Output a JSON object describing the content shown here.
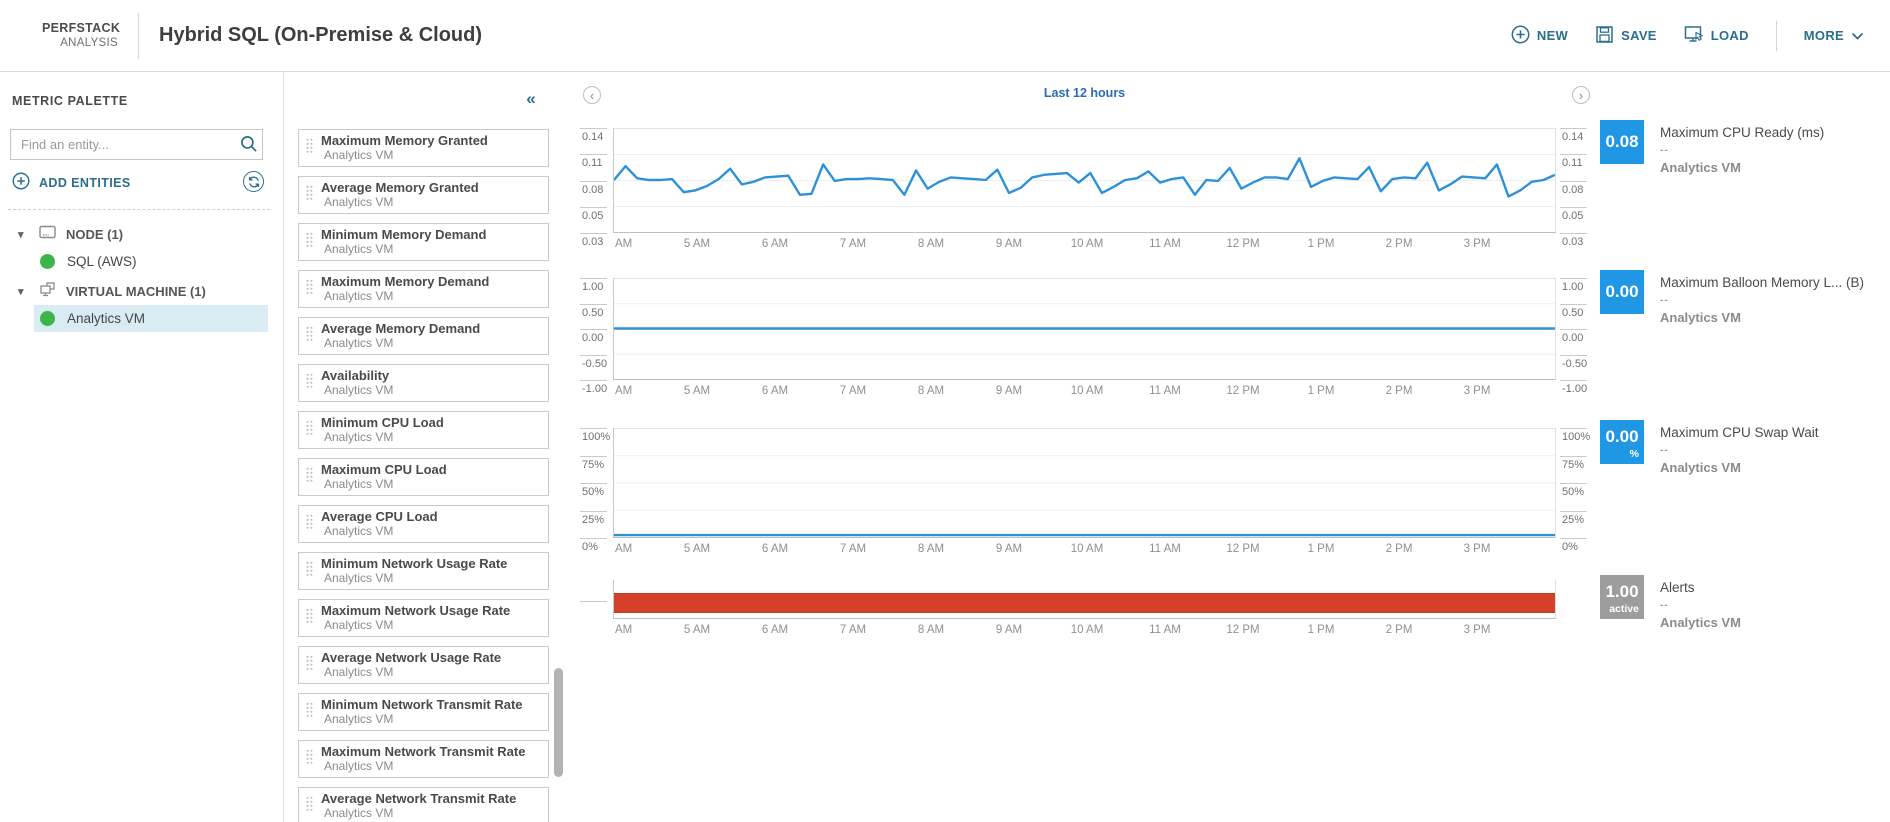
{
  "header": {
    "brand_top": "PERFSTACK",
    "brand_bottom": "ANALYSIS",
    "title": "Hybrid SQL (On-Premise & Cloud)",
    "actions": {
      "new": "NEW",
      "save": "SAVE",
      "load": "LOAD",
      "more": "MORE"
    }
  },
  "icons": {
    "collapse": "«",
    "caret": "▾",
    "prev": "‹",
    "next": "›"
  },
  "palette": {
    "title": "METRIC PALETTE",
    "search_placeholder": "Find an entity...",
    "add_entities": "ADD ENTITIES",
    "tree": [
      {
        "kind": "group",
        "icon": "node",
        "label": "NODE (1)"
      },
      {
        "kind": "entity",
        "status": "up",
        "label": "SQL (AWS)",
        "selected": false
      },
      {
        "kind": "group",
        "icon": "vm",
        "label": "VIRTUAL MACHINE (1)"
      },
      {
        "kind": "entity",
        "status": "up",
        "label": "Analytics VM",
        "selected": true
      }
    ],
    "metrics": [
      {
        "label": "Maximum Memory Granted",
        "entity": "Analytics VM"
      },
      {
        "label": "Average Memory Granted",
        "entity": "Analytics VM"
      },
      {
        "label": "Minimum Memory Demand",
        "entity": "Analytics VM"
      },
      {
        "label": "Maximum Memory Demand",
        "entity": "Analytics VM"
      },
      {
        "label": "Average Memory Demand",
        "entity": "Analytics VM"
      },
      {
        "label": "Availability",
        "entity": "Analytics VM"
      },
      {
        "label": "Minimum CPU Load",
        "entity": "Analytics VM"
      },
      {
        "label": "Maximum CPU Load",
        "entity": "Analytics VM"
      },
      {
        "label": "Average CPU Load",
        "entity": "Analytics VM"
      },
      {
        "label": "Minimum Network Usage Rate",
        "entity": "Analytics VM"
      },
      {
        "label": "Maximum Network Usage Rate",
        "entity": "Analytics VM"
      },
      {
        "label": "Average Network Usage Rate",
        "entity": "Analytics VM"
      },
      {
        "label": "Minimum Network Transmit Rate",
        "entity": "Analytics VM"
      },
      {
        "label": "Maximum Network Transmit Rate",
        "entity": "Analytics VM"
      },
      {
        "label": "Average Network Transmit Rate",
        "entity": "Analytics VM"
      }
    ]
  },
  "charts": {
    "time_range": "Last 12 hours"
  },
  "chart_data": [
    {
      "type": "line",
      "title": "Maximum CPU Ready (ms)",
      "entity": "Analytics VM",
      "line_color": "#2d91d8",
      "ylim": [
        0.03,
        0.14
      ],
      "y_ticks": [
        "0.14",
        "0.11",
        "0.08",
        "0.05",
        "0.03"
      ],
      "x_labels": [
        "AM",
        "5 AM",
        "6 AM",
        "7 AM",
        "8 AM",
        "9 AM",
        "10 AM",
        "11 AM",
        "12 PM",
        "1 PM",
        "2 PM",
        "3 PM"
      ],
      "values": [
        0.08,
        0.096,
        0.082,
        0.08,
        0.08,
        0.081,
        0.066,
        0.068,
        0.073,
        0.081,
        0.093,
        0.075,
        0.078,
        0.083,
        0.084,
        0.085,
        0.063,
        0.064,
        0.098,
        0.079,
        0.081,
        0.081,
        0.082,
        0.081,
        0.08,
        0.063,
        0.091,
        0.07,
        0.078,
        0.083,
        0.082,
        0.081,
        0.08,
        0.092,
        0.065,
        0.071,
        0.083,
        0.086,
        0.087,
        0.088,
        0.077,
        0.088,
        0.065,
        0.072,
        0.08,
        0.082,
        0.09,
        0.077,
        0.081,
        0.083,
        0.063,
        0.08,
        0.079,
        0.094,
        0.07,
        0.077,
        0.083,
        0.083,
        0.081,
        0.105,
        0.072,
        0.079,
        0.083,
        0.082,
        0.081,
        0.095,
        0.067,
        0.081,
        0.083,
        0.082,
        0.1,
        0.068,
        0.075,
        0.084,
        0.083,
        0.082,
        0.098,
        0.061,
        0.068,
        0.078,
        0.08,
        0.086
      ],
      "badge": {
        "value": "0.08",
        "unit": "",
        "color": "#2097e4",
        "sub": "--"
      }
    },
    {
      "type": "line",
      "title": "Maximum Balloon Memory L... (B)",
      "entity": "Analytics VM",
      "line_color": "#2d91d8",
      "ylim": [
        -1.0,
        1.0
      ],
      "y_ticks": [
        "1.00",
        "0.50",
        "0.00",
        "-0.50",
        "-1.00"
      ],
      "x_labels": [
        "AM",
        "5 AM",
        "6 AM",
        "7 AM",
        "8 AM",
        "9 AM",
        "10 AM",
        "11 AM",
        "12 PM",
        "1 PM",
        "2 PM",
        "3 PM"
      ],
      "values": [
        0.0,
        0.0
      ],
      "badge": {
        "value": "0.00",
        "unit": "",
        "color": "#2097e4",
        "sub": "--"
      }
    },
    {
      "type": "line",
      "title": "Maximum CPU Swap Wait",
      "entity": "Analytics VM",
      "line_color": "#2d91d8",
      "ylim": [
        0,
        100
      ],
      "y_ticks": [
        "100%",
        "75%",
        "50%",
        "25%",
        "0%"
      ],
      "x_labels": [
        "AM",
        "5 AM",
        "6 AM",
        "7 AM",
        "8 AM",
        "9 AM",
        "10 AM",
        "11 AM",
        "12 PM",
        "1 PM",
        "2 PM",
        "3 PM"
      ],
      "values": [
        0,
        0
      ],
      "badge": {
        "value": "0.00",
        "unit": "%",
        "color": "#2097e4",
        "sub": "--"
      }
    },
    {
      "type": "band",
      "title": "Alerts",
      "entity": "Analytics VM",
      "color": "#d5402b",
      "y_ticks": [],
      "x_labels": [
        "AM",
        "5 AM",
        "6 AM",
        "7 AM",
        "8 AM",
        "9 AM",
        "10 AM",
        "11 AM",
        "12 PM",
        "1 PM",
        "2 PM",
        "3 PM"
      ],
      "badge": {
        "value": "1.00",
        "unit": "active",
        "color": "#9d9d9d",
        "sub": "--"
      }
    }
  ]
}
